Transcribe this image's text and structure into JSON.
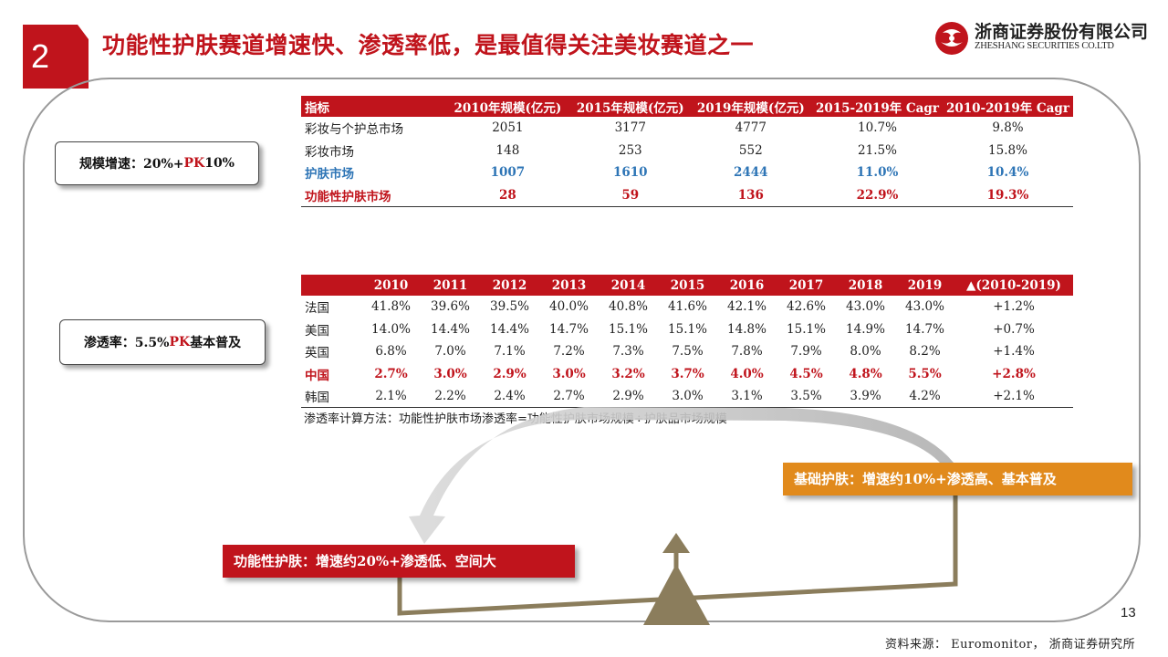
{
  "header": {
    "section_number": "2",
    "title": "功能性护肤赛道增速快、渗透率低，是最值得关注美妆赛道之一",
    "company_cn": "浙商证券股份有限公司",
    "company_en": "ZHESHANG SECURITIES CO.LTD",
    "brand_color": "#c0141c"
  },
  "side_labels": {
    "growth": {
      "pre": "规模增速：20%+ ",
      "pk": "PK",
      "post": " 10%"
    },
    "penetration": {
      "pre": "渗透率：5.5% ",
      "pk": "PK",
      "post": " 基本普及"
    }
  },
  "table1": {
    "headers": [
      "指标",
      "2010年规模(亿元)",
      "2015年规模(亿元)",
      "2019年规模(亿元)",
      "2015-2019年 Cagr",
      "2010-2019年  Cagr"
    ],
    "rows": [
      {
        "style": "normal",
        "cells": [
          "彩妆与个护总市场",
          "2051",
          "3177",
          "4777",
          "10.7%",
          "9.8%"
        ]
      },
      {
        "style": "normal",
        "cells": [
          "彩妆市场",
          "148",
          "253",
          "552",
          "21.5%",
          "15.8%"
        ]
      },
      {
        "style": "blue",
        "cells": [
          "护肤市场",
          "1007",
          "1610",
          "2444",
          "11.0%",
          "10.4%"
        ]
      },
      {
        "style": "red",
        "cells": [
          "功能性护肤市场",
          "28",
          "59",
          "136",
          "22.9%",
          "19.3%"
        ]
      }
    ]
  },
  "table2": {
    "headers": [
      "",
      "2010",
      "2011",
      "2012",
      "2013",
      "2014",
      "2015",
      "2016",
      "2017",
      "2018",
      "2019",
      "▲(2010-2019)"
    ],
    "rows": [
      {
        "style": "normal",
        "cells": [
          "法国",
          "41.8%",
          "39.6%",
          "39.5%",
          "40.0%",
          "40.8%",
          "41.6%",
          "42.1%",
          "42.6%",
          "43.0%",
          "43.0%",
          "+1.2%"
        ]
      },
      {
        "style": "normal",
        "cells": [
          "美国",
          "14.0%",
          "14.4%",
          "14.4%",
          "14.7%",
          "15.1%",
          "15.1%",
          "14.8%",
          "15.1%",
          "14.9%",
          "14.7%",
          "+0.7%"
        ]
      },
      {
        "style": "normal",
        "cells": [
          "英国",
          "6.8%",
          "7.0%",
          "7.1%",
          "7.2%",
          "7.3%",
          "7.5%",
          "7.8%",
          "7.9%",
          "8.0%",
          "8.2%",
          "+1.4%"
        ]
      },
      {
        "style": "red",
        "cells": [
          "中国",
          "2.7%",
          "3.0%",
          "2.9%",
          "3.0%",
          "3.2%",
          "3.7%",
          "4.0%",
          "4.5%",
          "4.8%",
          "5.5%",
          "+2.8%"
        ]
      },
      {
        "style": "normal",
        "cells": [
          "韩国",
          "2.1%",
          "2.2%",
          "2.4%",
          "2.7%",
          "2.9%",
          "3.0%",
          "3.1%",
          "3.5%",
          "3.9%",
          "4.2%",
          "+2.1%"
        ]
      }
    ]
  },
  "note": "渗透率计算方法：功能性护肤市场渗透率=功能性护肤市场规模÷护肤品市场规模",
  "diagram": {
    "basic_label": "基础护肤：增速约10%+渗透高、基本普及",
    "functional_label": "功能性护肤：增速约20%+渗透低、空间大",
    "basic_color": "#e18a1c",
    "scale_color": "#8b7d5c"
  },
  "page_number": "13",
  "source": "资料来源： Euromonitor， 浙商证券研究所"
}
